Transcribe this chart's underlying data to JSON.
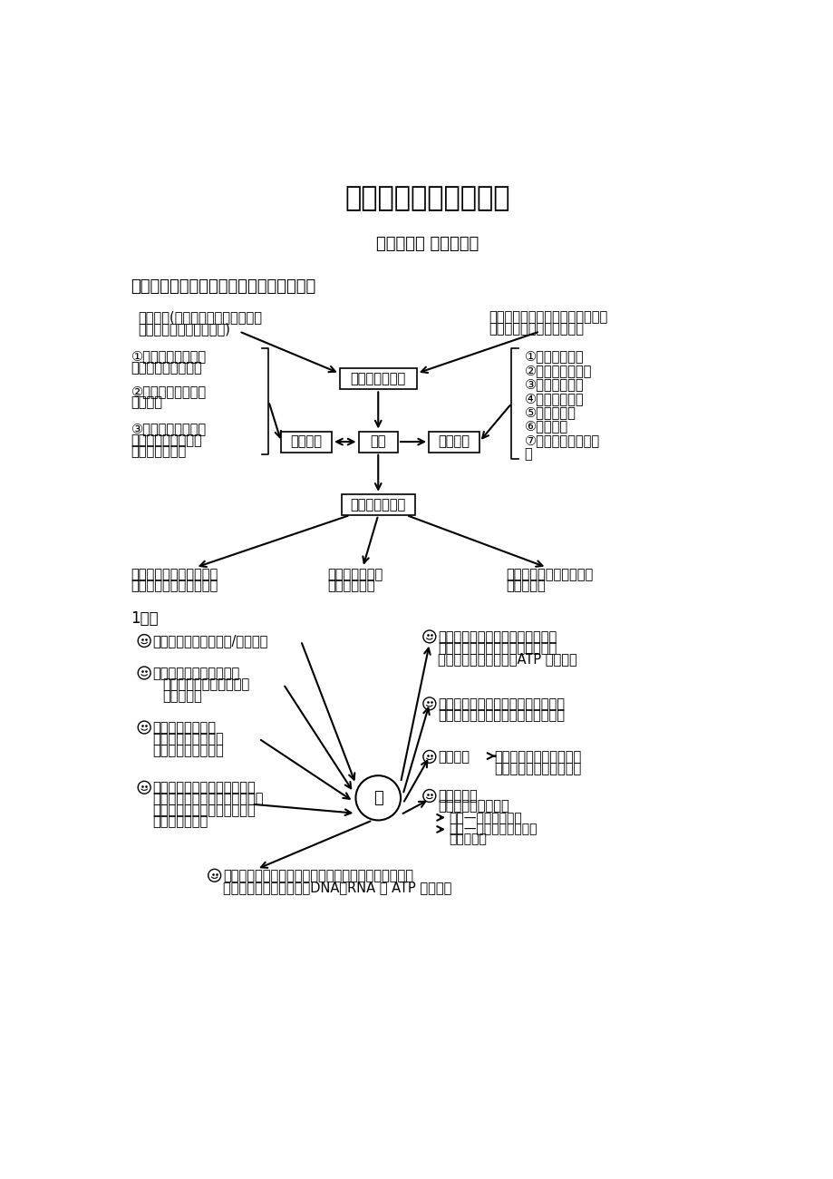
{
  "title": "高中生物知识网络体系",
  "subtitle": "平顶山四中 刘超伟整理",
  "section1_title": "一、生命的物质基础、结构基础、细胞工程",
  "bg_color": "#ffffff",
  "text_color": "#000000",
  "box_labels": {
    "basis": "细胞的物质基础",
    "cell": "细胞",
    "struct": "细胞结构",
    "eng": "细胞工程",
    "div": "细胞增殖、分化"
  },
  "left_chem": [
    "化学元素(最基本元素、基本元素、",
    "大量元素、微量元素比较)"
  ],
  "right_chem": [
    "化合物（水、无机盐、蛋白质、糖",
    "类、脂质、维生素、核酸）"
  ],
  "left_struct": [
    [
      "①原核细胞、真核细",
      "胞及非细胞结构比较"
    ],
    [
      "②生物膜的结构、功",
      "能及联系"
    ],
    [
      "③线粒体、叶绿体的",
      "结构、功能比较及其",
      "他细胞器的功能"
    ]
  ],
  "right_eng": [
    "①植物组织培养",
    "②植物体细胞杂交",
    "③动物细胞培养",
    "④动物细胞融合",
    "⑤单克隆抗体",
    "⑥胚胎移植",
    "⑦动植物细胞工程比",
    "较"
  ],
  "div_items": [
    [
      "细胞分裂（有丝分裂、无",
      "丝分裂及减数分裂比较）"
    ],
    [
      "细胞衰老（主要",
      "特征、原因）"
    ],
    [
      "细胞癌变（癌细胞特点、",
      "致癌因子）"
    ]
  ],
  "water_label": "1．水",
  "water_center": "水",
  "water_left": [
    {
      "icon": true,
      "lines": [
        "水的存在形式（自由水/结合水）"
      ]
    },
    {
      "icon": true,
      "lines": [
        "水的作用（溶剂、运输、",
        "原料、成分、维持形态、",
        "调节体温）"
      ]
    },
    {
      "icon": true,
      "lines": [
        "水对动植物的影响",
        "（生存、分布、生活",
        "习性、形态、呼吸）"
      ]
    },
    {
      "icon": true,
      "lines": [
        "水污染（农药、化肥、工业废",
        "水、生活污水引起的富营养化、",
        "重金属污染、有机物污染、有",
        "害微生物污染）"
      ]
    }
  ],
  "water_right": [
    {
      "icon": true,
      "lines": [
        "代谢消耗的水（光反应，有氧呼吸",
        "第二阶段，糖元、淀粉、蛋白质、",
        "核酸分解为基本单位，ATP 的水解）"
      ]
    },
    {
      "icon": true,
      "lines": [
        "水分代谢（动植物对水分的吸收方式",
        "和原理、运输、利用、散失、应用）"
      ]
    },
    {
      "icon": true,
      "lines": [
        "水的平衡",
        "饮水、食物、代谢产生水",
        "泌尿、排汗、呼吸、粪便"
      ]
    },
    {
      "icon": true,
      "lines": [
        "体温调节：",
        "下丘脑体温调节中枢",
        "产热—内脏和骨骼肌",
        "散热—皮下毛细血管辐射",
        "和汗液蒸发"
      ]
    }
  ],
  "water_bottom": [
    "代谢产生的水（光合作用暗反应，有氧呼吸第三阶段，",
    "纤维素、淀粉、蛋白质、DNA、RNA 及 ATP 的合成）"
  ]
}
